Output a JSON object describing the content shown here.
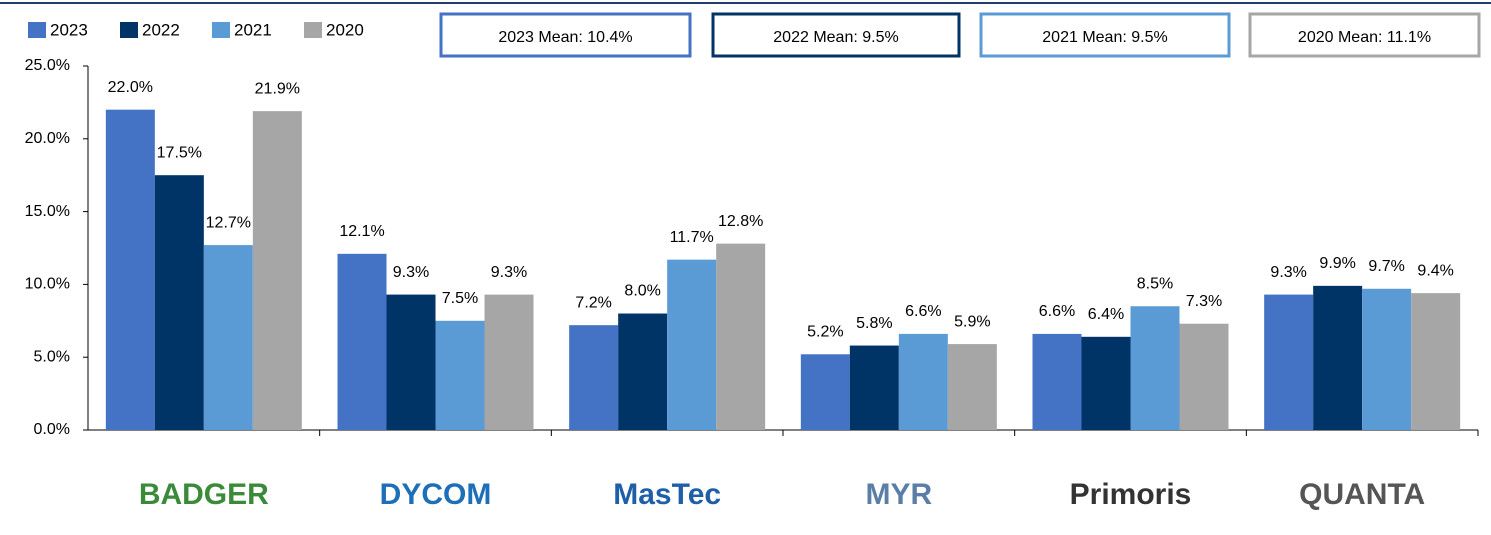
{
  "chart_data": {
    "type": "bar",
    "categories": [
      "BADGER",
      "DYCOM",
      "MasTec",
      "MYR",
      "Primoris",
      "QUANTA"
    ],
    "category_colors": [
      "#3a8a3a",
      "#1d6fb8",
      "#1f5fa8",
      "#5b7ea6",
      "#333333",
      "#555555"
    ],
    "series": [
      {
        "name": "2023",
        "color": "#4472c4",
        "values": [
          22.0,
          12.1,
          7.2,
          5.2,
          6.6,
          9.3
        ],
        "value_labels": [
          "22.0%",
          "12.1%",
          "7.2%",
          "5.2%",
          "6.6%",
          "9.3%"
        ]
      },
      {
        "name": "2022",
        "color": "#003366",
        "values": [
          17.5,
          9.3,
          8.0,
          5.8,
          6.4,
          9.9
        ],
        "value_labels": [
          "17.5%",
          "9.3%",
          "8.0%",
          "5.8%",
          "6.4%",
          "9.9%"
        ]
      },
      {
        "name": "2021",
        "color": "#5b9bd5",
        "values": [
          12.7,
          7.5,
          11.7,
          6.6,
          8.5,
          9.7
        ],
        "value_labels": [
          "12.7%",
          "7.5%",
          "11.7%",
          "6.6%",
          "8.5%",
          "9.7%"
        ]
      },
      {
        "name": "2020",
        "color": "#a6a6a6",
        "values": [
          21.9,
          9.3,
          12.8,
          5.9,
          7.3,
          9.4
        ],
        "value_labels": [
          "21.9%",
          "9.3%",
          "12.8%",
          "5.9%",
          "7.3%",
          "9.4%"
        ]
      }
    ],
    "annotations": [
      {
        "text": "2023 Mean: 10.4%",
        "color": "#4472c4"
      },
      {
        "text": "2022 Mean: 9.5%",
        "color": "#003366"
      },
      {
        "text": "2021 Mean: 9.5%",
        "color": "#5b9bd5"
      },
      {
        "text": "2020 Mean: 11.1%",
        "color": "#a6a6a6"
      }
    ],
    "ylim": [
      0,
      25
    ],
    "yticks": [
      {
        "value": 0,
        "label": "0.0%"
      },
      {
        "value": 5,
        "label": "5.0%"
      },
      {
        "value": 10,
        "label": "10.0%"
      },
      {
        "value": 15,
        "label": "15.0%"
      },
      {
        "value": 20,
        "label": "20.0%"
      },
      {
        "value": 25,
        "label": "25.0%"
      }
    ],
    "legend": "top-left"
  }
}
